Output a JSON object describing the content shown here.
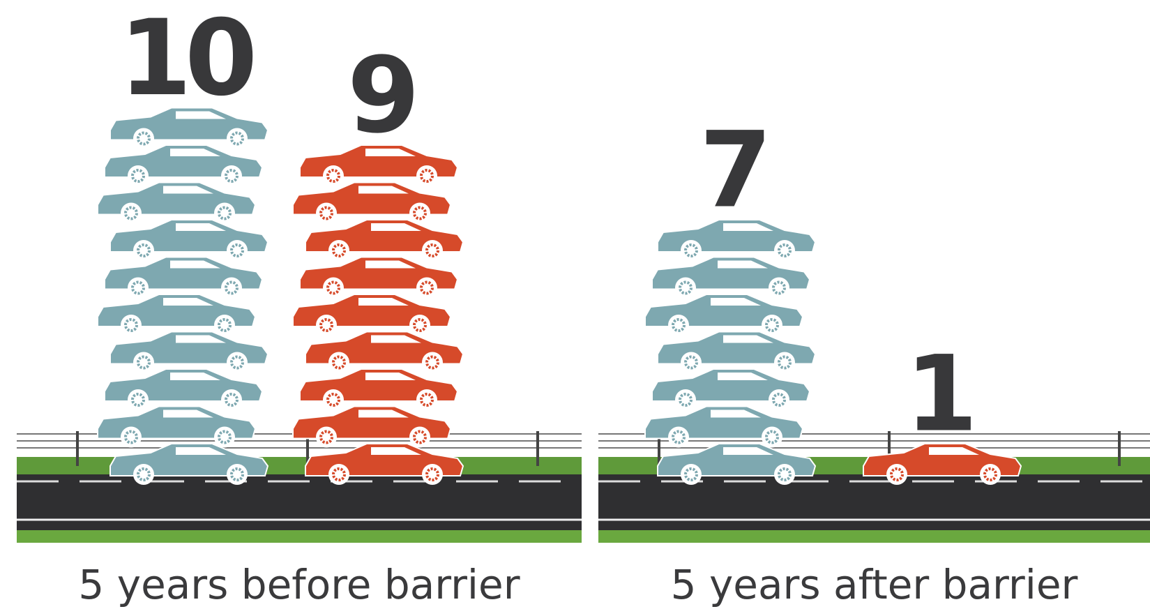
{
  "chart_data": [
    {
      "type": "pictograph",
      "title": "5 years before barrier",
      "values": [
        10,
        9
      ],
      "colors": [
        "#7ea8b0",
        "#d64a2a"
      ]
    },
    {
      "type": "pictograph",
      "title": "5 years after barrier",
      "values": [
        7,
        1
      ],
      "colors": [
        "#7ea8b0",
        "#d64a2a"
      ]
    }
  ]
}
